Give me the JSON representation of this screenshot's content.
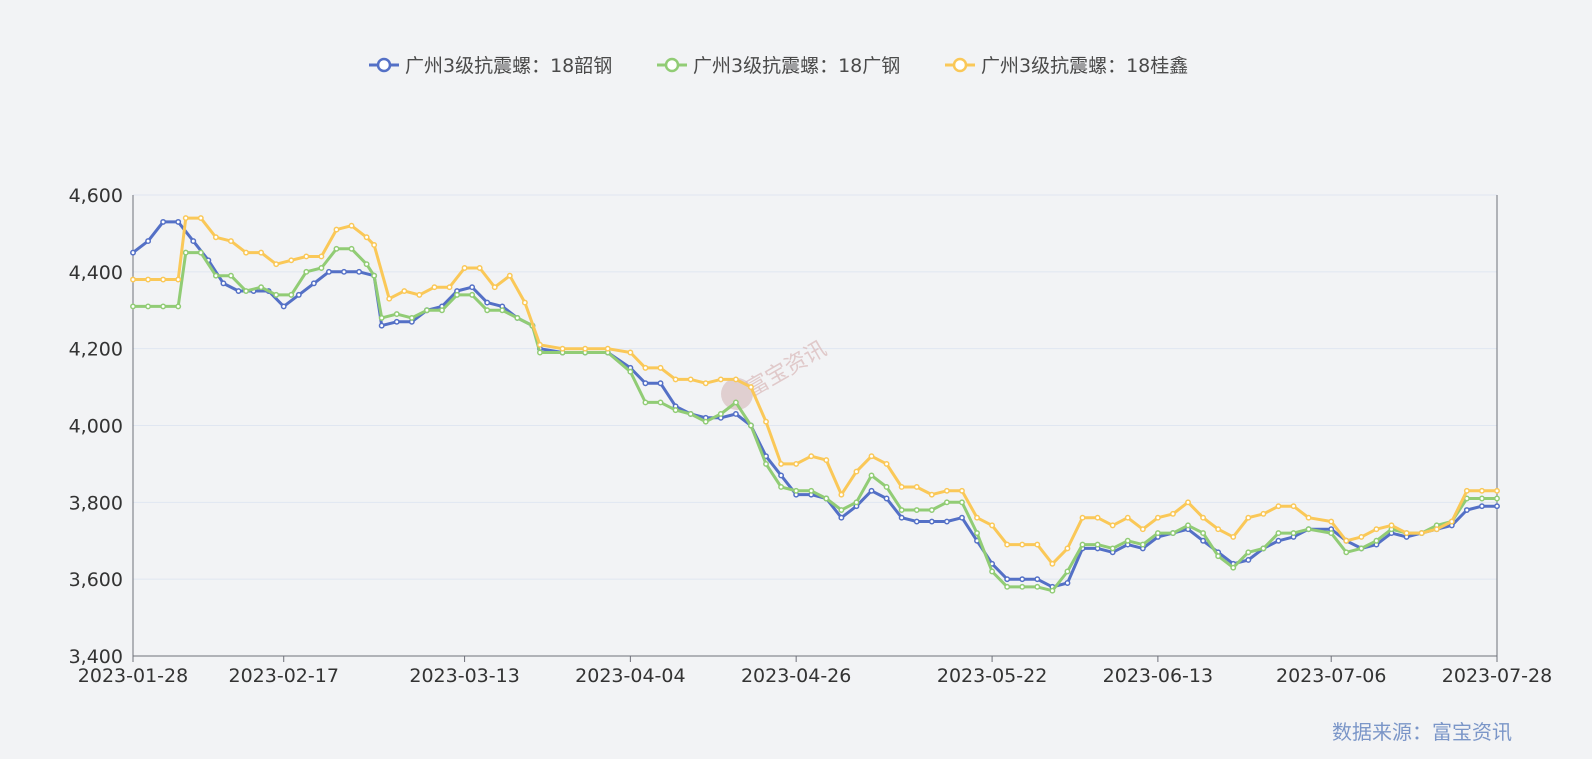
{
  "chart_data": {
    "type": "line",
    "title": "",
    "xlabel": "",
    "ylabel": "",
    "ylim": [
      3400,
      4600
    ],
    "yticks": [
      3400,
      3600,
      3800,
      4000,
      4200,
      4400,
      4600
    ],
    "yticks_labels": [
      "3,400",
      "3,600",
      "3,800",
      "4,000",
      "4,200",
      "4,400",
      "4,600"
    ],
    "x_range": [
      "2023-01-28",
      "2023-07-28"
    ],
    "xticks": [
      "2023-01-28",
      "2023-02-17",
      "2023-03-13",
      "2023-04-04",
      "2023-04-26",
      "2023-05-22",
      "2023-06-13",
      "2023-07-06",
      "2023-07-28"
    ],
    "grid": true,
    "legend_position": "top-center",
    "series": [
      {
        "name": "广州3级抗震螺：18韶钢",
        "color": "#5470c6",
        "points": [
          [
            "2023-01-28",
            4450
          ],
          [
            "2023-01-30",
            4480
          ],
          [
            "2023-02-01",
            4530
          ],
          [
            "2023-02-03",
            4530
          ],
          [
            "2023-02-05",
            4480
          ],
          [
            "2023-02-07",
            4430
          ],
          [
            "2023-02-09",
            4370
          ],
          [
            "2023-02-11",
            4350
          ],
          [
            "2023-02-13",
            4350
          ],
          [
            "2023-02-15",
            4350
          ],
          [
            "2023-02-17",
            4310
          ],
          [
            "2023-02-19",
            4340
          ],
          [
            "2023-02-21",
            4370
          ],
          [
            "2023-02-23",
            4400
          ],
          [
            "2023-02-25",
            4400
          ],
          [
            "2023-02-27",
            4400
          ],
          [
            "2023-03-01",
            4390
          ],
          [
            "2023-03-02",
            4260
          ],
          [
            "2023-03-04",
            4270
          ],
          [
            "2023-03-06",
            4270
          ],
          [
            "2023-03-08",
            4300
          ],
          [
            "2023-03-10",
            4310
          ],
          [
            "2023-03-12",
            4350
          ],
          [
            "2023-03-14",
            4360
          ],
          [
            "2023-03-16",
            4320
          ],
          [
            "2023-03-18",
            4310
          ],
          [
            "2023-03-20",
            4280
          ],
          [
            "2023-03-22",
            4260
          ],
          [
            "2023-03-23",
            4200
          ],
          [
            "2023-03-26",
            4190
          ],
          [
            "2023-03-29",
            4190
          ],
          [
            "2023-04-01",
            4190
          ],
          [
            "2023-04-04",
            4150
          ],
          [
            "2023-04-06",
            4110
          ],
          [
            "2023-04-08",
            4110
          ],
          [
            "2023-04-10",
            4050
          ],
          [
            "2023-04-12",
            4030
          ],
          [
            "2023-04-14",
            4020
          ],
          [
            "2023-04-16",
            4020
          ],
          [
            "2023-04-18",
            4030
          ],
          [
            "2023-04-20",
            4000
          ],
          [
            "2023-04-22",
            3920
          ],
          [
            "2023-04-24",
            3870
          ],
          [
            "2023-04-26",
            3820
          ],
          [
            "2023-04-28",
            3820
          ],
          [
            "2023-04-30",
            3810
          ],
          [
            "2023-05-02",
            3760
          ],
          [
            "2023-05-04",
            3790
          ],
          [
            "2023-05-06",
            3830
          ],
          [
            "2023-05-08",
            3810
          ],
          [
            "2023-05-10",
            3760
          ],
          [
            "2023-05-12",
            3750
          ],
          [
            "2023-05-14",
            3750
          ],
          [
            "2023-05-16",
            3750
          ],
          [
            "2023-05-18",
            3760
          ],
          [
            "2023-05-20",
            3700
          ],
          [
            "2023-05-22",
            3640
          ],
          [
            "2023-05-24",
            3600
          ],
          [
            "2023-05-26",
            3600
          ],
          [
            "2023-05-28",
            3600
          ],
          [
            "2023-05-30",
            3580
          ],
          [
            "2023-06-01",
            3590
          ],
          [
            "2023-06-03",
            3680
          ],
          [
            "2023-06-05",
            3680
          ],
          [
            "2023-06-07",
            3670
          ],
          [
            "2023-06-09",
            3690
          ],
          [
            "2023-06-11",
            3680
          ],
          [
            "2023-06-13",
            3710
          ],
          [
            "2023-06-15",
            3720
          ],
          [
            "2023-06-17",
            3730
          ],
          [
            "2023-06-19",
            3700
          ],
          [
            "2023-06-21",
            3670
          ],
          [
            "2023-06-23",
            3640
          ],
          [
            "2023-06-25",
            3650
          ],
          [
            "2023-06-27",
            3680
          ],
          [
            "2023-06-29",
            3700
          ],
          [
            "2023-07-01",
            3710
          ],
          [
            "2023-07-03",
            3730
          ],
          [
            "2023-07-06",
            3730
          ],
          [
            "2023-07-08",
            3700
          ],
          [
            "2023-07-10",
            3680
          ],
          [
            "2023-07-12",
            3690
          ],
          [
            "2023-07-14",
            3720
          ],
          [
            "2023-07-16",
            3710
          ],
          [
            "2023-07-18",
            3720
          ],
          [
            "2023-07-20",
            3730
          ],
          [
            "2023-07-22",
            3740
          ],
          [
            "2023-07-24",
            3780
          ],
          [
            "2023-07-26",
            3790
          ],
          [
            "2023-07-28",
            3790
          ]
        ]
      },
      {
        "name": "广州3级抗震螺：18广钢",
        "color": "#91cc75",
        "points": [
          [
            "2023-01-28",
            4310
          ],
          [
            "2023-01-30",
            4310
          ],
          [
            "2023-02-01",
            4310
          ],
          [
            "2023-02-03",
            4310
          ],
          [
            "2023-02-04",
            4450
          ],
          [
            "2023-02-06",
            4450
          ],
          [
            "2023-02-08",
            4390
          ],
          [
            "2023-02-10",
            4390
          ],
          [
            "2023-02-12",
            4350
          ],
          [
            "2023-02-14",
            4360
          ],
          [
            "2023-02-16",
            4340
          ],
          [
            "2023-02-18",
            4340
          ],
          [
            "2023-02-20",
            4400
          ],
          [
            "2023-02-22",
            4410
          ],
          [
            "2023-02-24",
            4460
          ],
          [
            "2023-02-26",
            4460
          ],
          [
            "2023-02-28",
            4420
          ],
          [
            "2023-03-01",
            4390
          ],
          [
            "2023-03-02",
            4280
          ],
          [
            "2023-03-04",
            4290
          ],
          [
            "2023-03-06",
            4280
          ],
          [
            "2023-03-08",
            4300
          ],
          [
            "2023-03-10",
            4300
          ],
          [
            "2023-03-12",
            4340
          ],
          [
            "2023-03-14",
            4340
          ],
          [
            "2023-03-16",
            4300
          ],
          [
            "2023-03-18",
            4300
          ],
          [
            "2023-03-20",
            4280
          ],
          [
            "2023-03-22",
            4260
          ],
          [
            "2023-03-23",
            4190
          ],
          [
            "2023-03-26",
            4190
          ],
          [
            "2023-03-29",
            4190
          ],
          [
            "2023-04-01",
            4190
          ],
          [
            "2023-04-04",
            4140
          ],
          [
            "2023-04-06",
            4060
          ],
          [
            "2023-04-08",
            4060
          ],
          [
            "2023-04-10",
            4040
          ],
          [
            "2023-04-12",
            4030
          ],
          [
            "2023-04-14",
            4010
          ],
          [
            "2023-04-16",
            4030
          ],
          [
            "2023-04-18",
            4060
          ],
          [
            "2023-04-20",
            4000
          ],
          [
            "2023-04-22",
            3900
          ],
          [
            "2023-04-24",
            3840
          ],
          [
            "2023-04-26",
            3830
          ],
          [
            "2023-04-28",
            3830
          ],
          [
            "2023-04-30",
            3810
          ],
          [
            "2023-05-02",
            3780
          ],
          [
            "2023-05-04",
            3800
          ],
          [
            "2023-05-06",
            3870
          ],
          [
            "2023-05-08",
            3840
          ],
          [
            "2023-05-10",
            3780
          ],
          [
            "2023-05-12",
            3780
          ],
          [
            "2023-05-14",
            3780
          ],
          [
            "2023-05-16",
            3800
          ],
          [
            "2023-05-18",
            3800
          ],
          [
            "2023-05-20",
            3720
          ],
          [
            "2023-05-22",
            3620
          ],
          [
            "2023-05-24",
            3580
          ],
          [
            "2023-05-26",
            3580
          ],
          [
            "2023-05-28",
            3580
          ],
          [
            "2023-05-30",
            3570
          ],
          [
            "2023-06-01",
            3620
          ],
          [
            "2023-06-03",
            3690
          ],
          [
            "2023-06-05",
            3690
          ],
          [
            "2023-06-07",
            3680
          ],
          [
            "2023-06-09",
            3700
          ],
          [
            "2023-06-11",
            3690
          ],
          [
            "2023-06-13",
            3720
          ],
          [
            "2023-06-15",
            3720
          ],
          [
            "2023-06-17",
            3740
          ],
          [
            "2023-06-19",
            3720
          ],
          [
            "2023-06-21",
            3660
          ],
          [
            "2023-06-23",
            3630
          ],
          [
            "2023-06-25",
            3670
          ],
          [
            "2023-06-27",
            3680
          ],
          [
            "2023-06-29",
            3720
          ],
          [
            "2023-07-01",
            3720
          ],
          [
            "2023-07-03",
            3730
          ],
          [
            "2023-07-06",
            3720
          ],
          [
            "2023-07-08",
            3670
          ],
          [
            "2023-07-10",
            3680
          ],
          [
            "2023-07-12",
            3700
          ],
          [
            "2023-07-14",
            3730
          ],
          [
            "2023-07-16",
            3720
          ],
          [
            "2023-07-18",
            3720
          ],
          [
            "2023-07-20",
            3740
          ],
          [
            "2023-07-22",
            3750
          ],
          [
            "2023-07-24",
            3810
          ],
          [
            "2023-07-26",
            3810
          ],
          [
            "2023-07-28",
            3810
          ]
        ]
      },
      {
        "name": "广州3级抗震螺：18桂鑫",
        "color": "#fac858",
        "points": [
          [
            "2023-01-28",
            4380
          ],
          [
            "2023-01-30",
            4380
          ],
          [
            "2023-02-01",
            4380
          ],
          [
            "2023-02-03",
            4380
          ],
          [
            "2023-02-04",
            4540
          ],
          [
            "2023-02-06",
            4540
          ],
          [
            "2023-02-08",
            4490
          ],
          [
            "2023-02-10",
            4480
          ],
          [
            "2023-02-12",
            4450
          ],
          [
            "2023-02-14",
            4450
          ],
          [
            "2023-02-16",
            4420
          ],
          [
            "2023-02-18",
            4430
          ],
          [
            "2023-02-20",
            4440
          ],
          [
            "2023-02-22",
            4440
          ],
          [
            "2023-02-24",
            4510
          ],
          [
            "2023-02-26",
            4520
          ],
          [
            "2023-02-28",
            4490
          ],
          [
            "2023-03-01",
            4470
          ],
          [
            "2023-03-03",
            4330
          ],
          [
            "2023-03-05",
            4350
          ],
          [
            "2023-03-07",
            4340
          ],
          [
            "2023-03-09",
            4360
          ],
          [
            "2023-03-11",
            4360
          ],
          [
            "2023-03-13",
            4410
          ],
          [
            "2023-03-15",
            4410
          ],
          [
            "2023-03-17",
            4360
          ],
          [
            "2023-03-19",
            4390
          ],
          [
            "2023-03-21",
            4320
          ],
          [
            "2023-03-23",
            4210
          ],
          [
            "2023-03-26",
            4200
          ],
          [
            "2023-03-29",
            4200
          ],
          [
            "2023-04-01",
            4200
          ],
          [
            "2023-04-04",
            4190
          ],
          [
            "2023-04-06",
            4150
          ],
          [
            "2023-04-08",
            4150
          ],
          [
            "2023-04-10",
            4120
          ],
          [
            "2023-04-12",
            4120
          ],
          [
            "2023-04-14",
            4110
          ],
          [
            "2023-04-16",
            4120
          ],
          [
            "2023-04-18",
            4120
          ],
          [
            "2023-04-20",
            4100
          ],
          [
            "2023-04-22",
            4010
          ],
          [
            "2023-04-24",
            3900
          ],
          [
            "2023-04-26",
            3900
          ],
          [
            "2023-04-28",
            3920
          ],
          [
            "2023-04-30",
            3910
          ],
          [
            "2023-05-02",
            3820
          ],
          [
            "2023-05-04",
            3880
          ],
          [
            "2023-05-06",
            3920
          ],
          [
            "2023-05-08",
            3900
          ],
          [
            "2023-05-10",
            3840
          ],
          [
            "2023-05-12",
            3840
          ],
          [
            "2023-05-14",
            3820
          ],
          [
            "2023-05-16",
            3830
          ],
          [
            "2023-05-18",
            3830
          ],
          [
            "2023-05-20",
            3760
          ],
          [
            "2023-05-22",
            3740
          ],
          [
            "2023-05-24",
            3690
          ],
          [
            "2023-05-26",
            3690
          ],
          [
            "2023-05-28",
            3690
          ],
          [
            "2023-05-30",
            3640
          ],
          [
            "2023-06-01",
            3680
          ],
          [
            "2023-06-03",
            3760
          ],
          [
            "2023-06-05",
            3760
          ],
          [
            "2023-06-07",
            3740
          ],
          [
            "2023-06-09",
            3760
          ],
          [
            "2023-06-11",
            3730
          ],
          [
            "2023-06-13",
            3760
          ],
          [
            "2023-06-15",
            3770
          ],
          [
            "2023-06-17",
            3800
          ],
          [
            "2023-06-19",
            3760
          ],
          [
            "2023-06-21",
            3730
          ],
          [
            "2023-06-23",
            3710
          ],
          [
            "2023-06-25",
            3760
          ],
          [
            "2023-06-27",
            3770
          ],
          [
            "2023-06-29",
            3790
          ],
          [
            "2023-07-01",
            3790
          ],
          [
            "2023-07-03",
            3760
          ],
          [
            "2023-07-06",
            3750
          ],
          [
            "2023-07-08",
            3700
          ],
          [
            "2023-07-10",
            3710
          ],
          [
            "2023-07-12",
            3730
          ],
          [
            "2023-07-14",
            3740
          ],
          [
            "2023-07-16",
            3720
          ],
          [
            "2023-07-18",
            3720
          ],
          [
            "2023-07-20",
            3730
          ],
          [
            "2023-07-22",
            3750
          ],
          [
            "2023-07-24",
            3830
          ],
          [
            "2023-07-26",
            3830
          ],
          [
            "2023-07-28",
            3830
          ]
        ]
      }
    ]
  },
  "watermark": {
    "text": "富宝资讯"
  },
  "source": {
    "label": "数据来源：",
    "name": "富宝资讯"
  }
}
